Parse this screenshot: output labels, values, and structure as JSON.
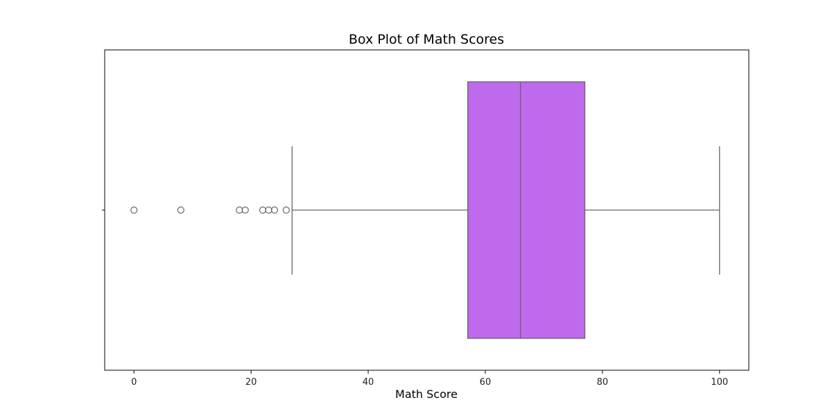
{
  "chart_data": {
    "type": "box",
    "title": "Box Plot of Math Scores",
    "xlabel": "Math Score",
    "ylabel": "",
    "orientation": "horizontal",
    "xlim": [
      -5,
      105
    ],
    "xticks": [
      0,
      20,
      40,
      60,
      80,
      100
    ],
    "box": {
      "whisker_low": 27,
      "q1": 57,
      "median": 66,
      "q3": 77,
      "whisker_high": 100
    },
    "outliers": [
      0,
      8,
      18,
      19,
      22,
      23,
      24,
      26
    ],
    "box_color": "#bf69ec",
    "line_color": "#666666",
    "grid": false,
    "legend": "none"
  }
}
